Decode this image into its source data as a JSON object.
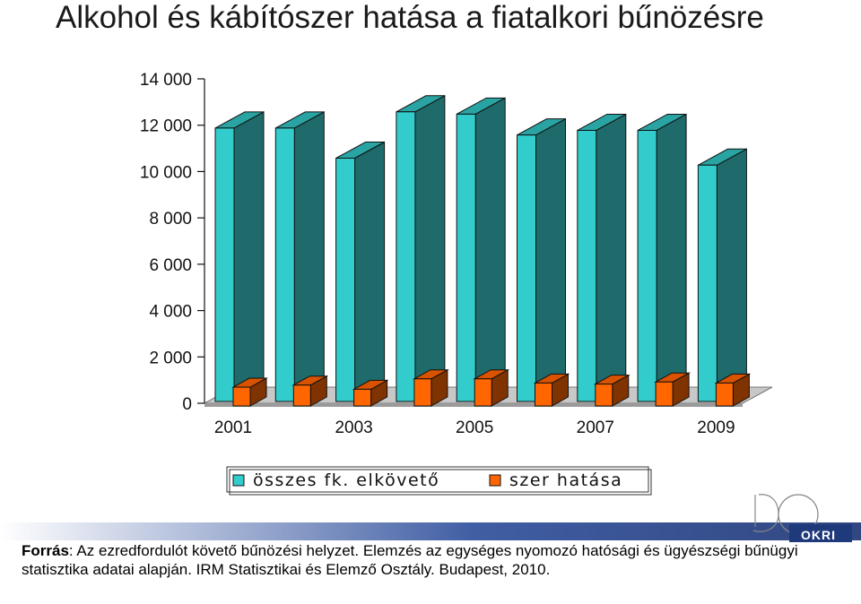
{
  "page": {
    "title": "Alkohol és kábítószer hatása a fiatalkori bűnözésre"
  },
  "chart_data": {
    "type": "bar",
    "style": "3d-clustered",
    "categories": [
      "2001",
      "2002",
      "2003",
      "2004",
      "2005",
      "2006",
      "2007",
      "2008",
      "2009"
    ],
    "visible_x_tick_labels": [
      "2001",
      "2003",
      "2005",
      "2007",
      "2009"
    ],
    "y_tick_labels": [
      "0",
      "2 000",
      "4 000",
      "6 000",
      "8 000",
      "10 000",
      "12 000",
      "14 000"
    ],
    "ylim": [
      0,
      14000
    ],
    "grid": false,
    "legend_position": "bottom",
    "series": [
      {
        "name": "összes fk. elkövető",
        "color": "#33cccc",
        "values": [
          11800,
          11800,
          10500,
          12500,
          12400,
          11500,
          11700,
          11700,
          10200
        ]
      },
      {
        "name": "szer hatása",
        "color": "#ff6600",
        "values": [
          900,
          1000,
          800,
          1300,
          1300,
          1100,
          1050,
          1150,
          1100
        ]
      }
    ]
  },
  "footer": {
    "source_label": "Forrás",
    "source_text": ": Az ezredfordulót követő bűnözési helyzet. Elemzés az egységes nyomozó hatósági és ügyészségi bűnügyi statisztika adatai alapján. IRM Statisztikai és Elemző Osztály. Budapest, 2010.",
    "logo_text": "OKRI",
    "logo_number": "50"
  },
  "colors": {
    "series1_front": "#33cccc",
    "series1_side": "#1f6b6b",
    "series2_front": "#ff6600",
    "series2_side": "#7f3300",
    "floor": "#9a9a9a",
    "footer_band": "#1f3a7a"
  }
}
